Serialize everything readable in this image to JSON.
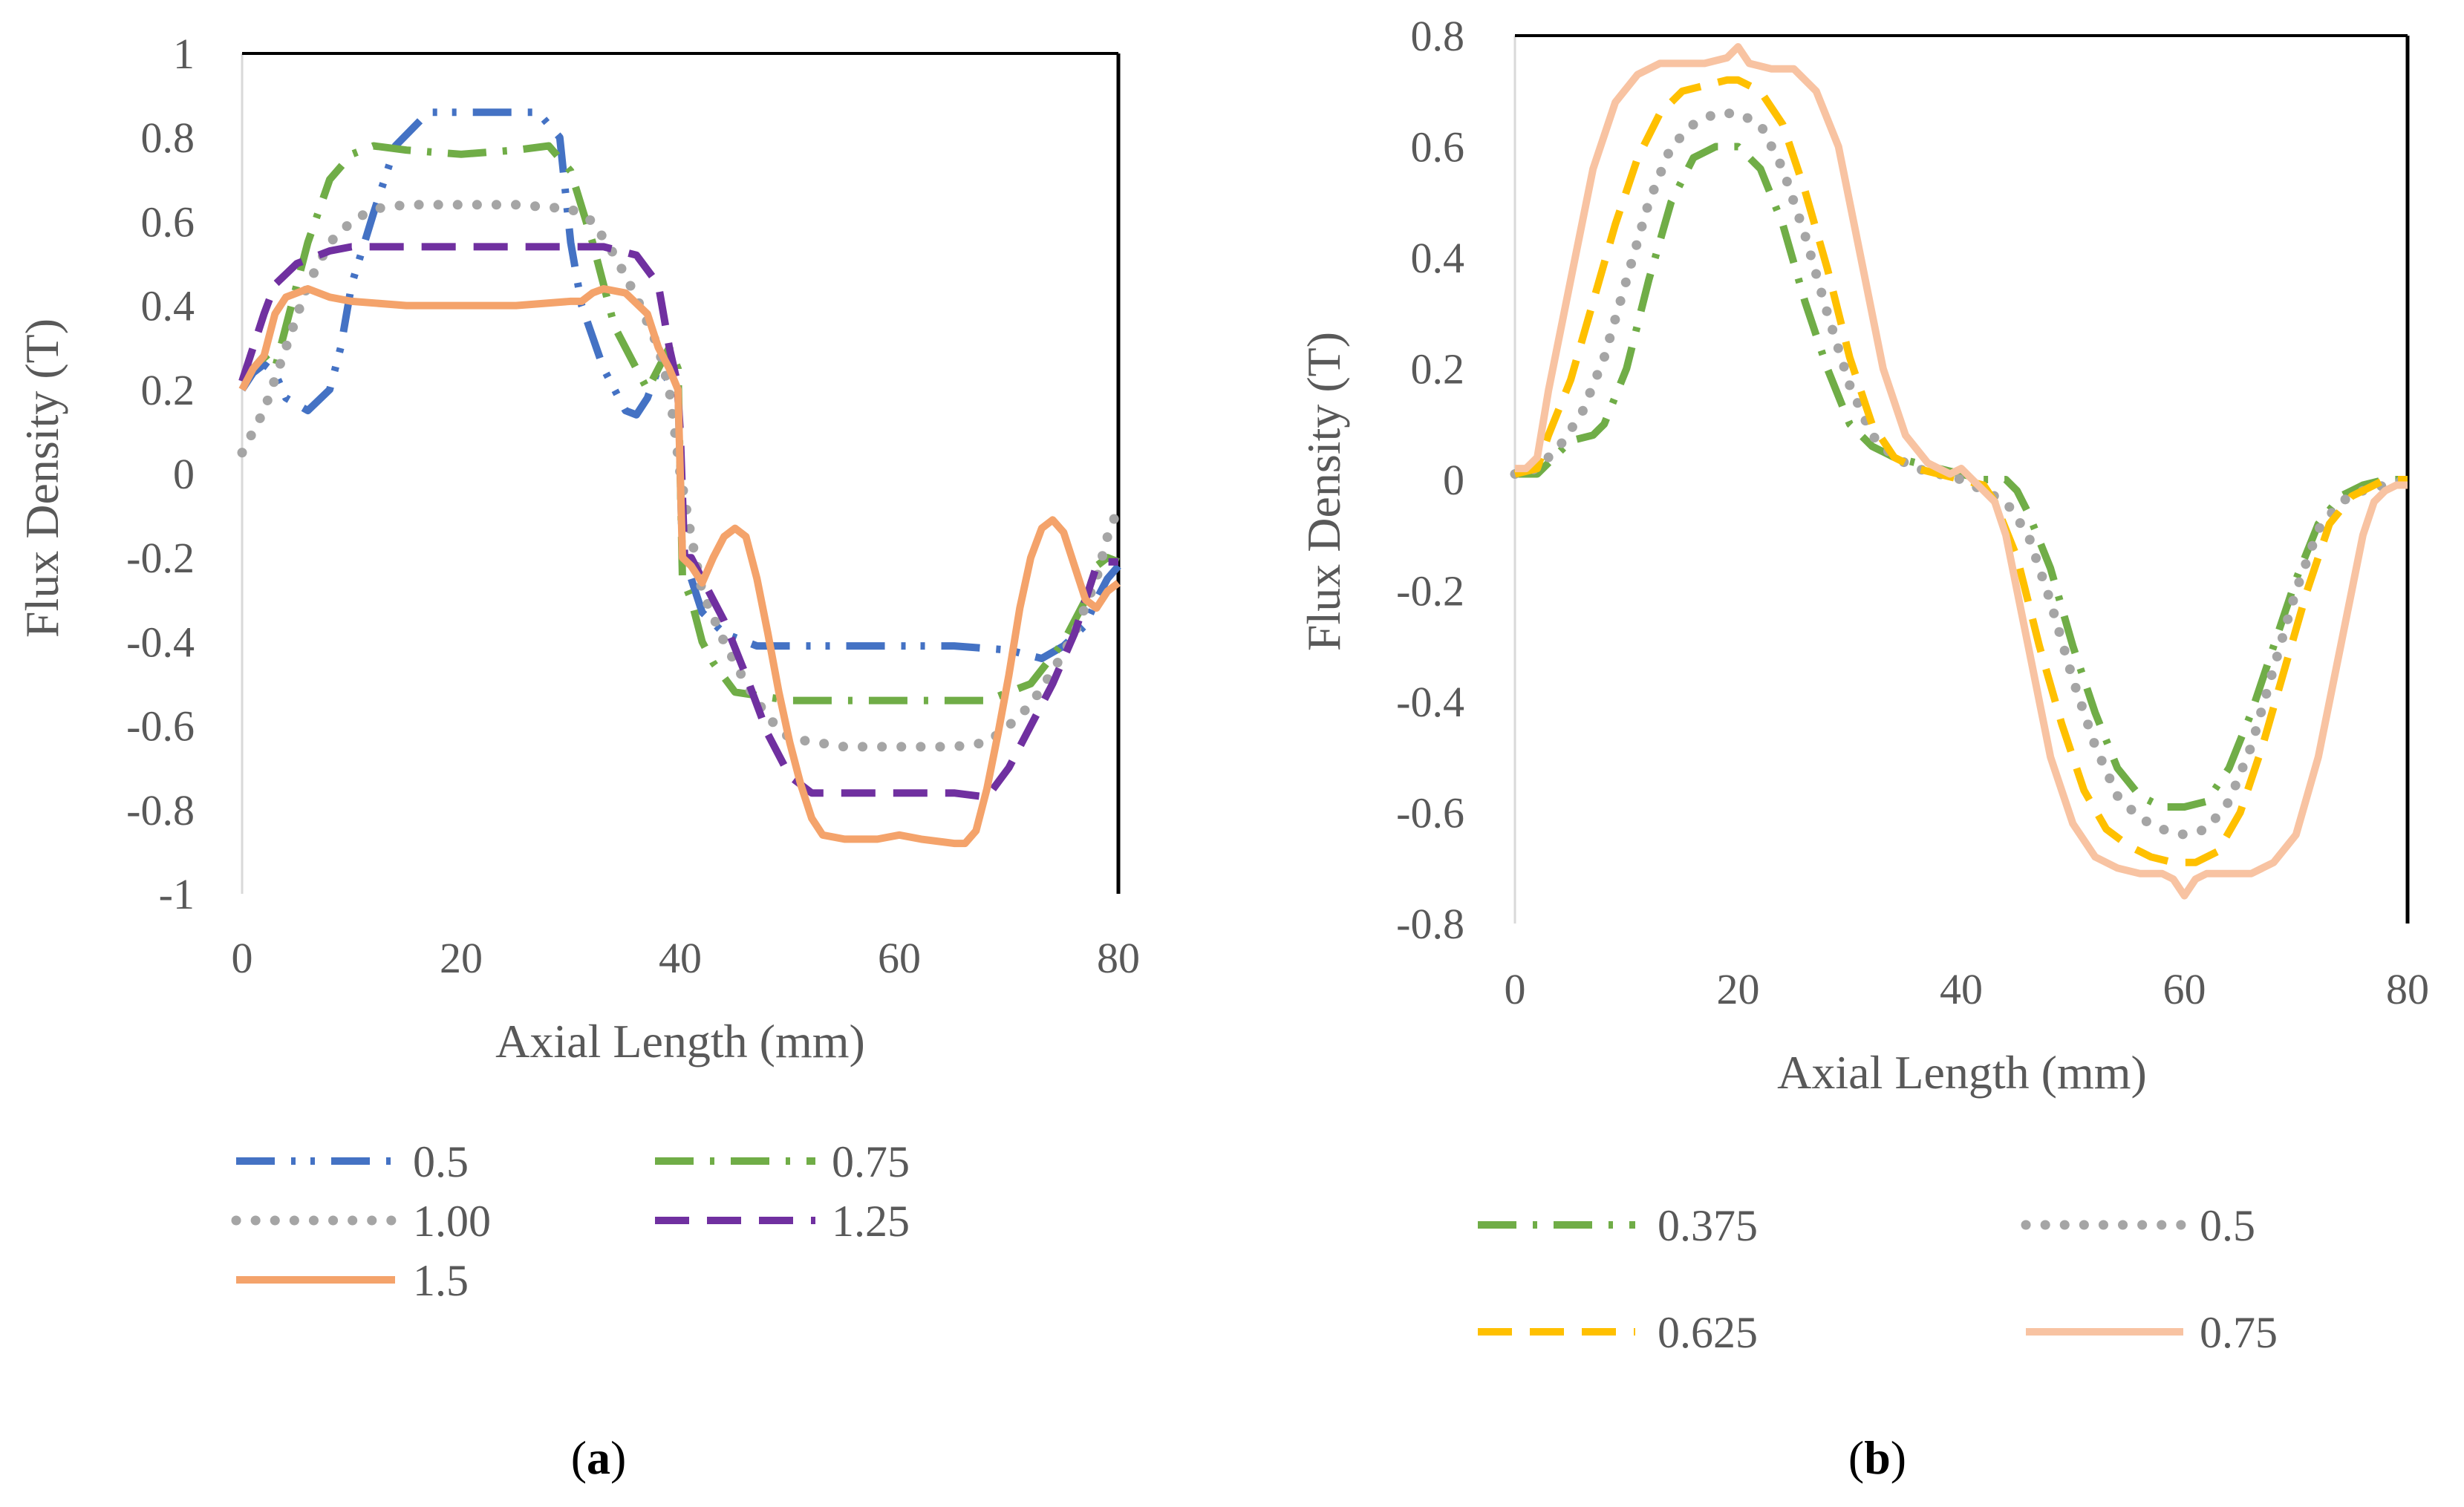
{
  "colors": {
    "blue": "#4472C4",
    "green": "#70AD47",
    "gray": "#A5A5A5",
    "purple": "#7030A0",
    "orange": "#F4A36B",
    "yellow": "#FFC000",
    "peach": "#F8C3A2",
    "text": "#595959"
  },
  "chart_data": [
    {
      "type": "line",
      "caption": {
        "open": "(",
        "letter": "a",
        "close": ")"
      },
      "xlabel": "Axial Length (mm)",
      "ylabel": "Flux Density (T)",
      "xlim": [
        0,
        80
      ],
      "ylim": [
        -1,
        1
      ],
      "xticks": [
        "0",
        "20",
        "40",
        "60",
        "80"
      ],
      "yticks": [
        "1",
        "0.8",
        "0.6",
        "0.4",
        "0.2",
        "0",
        "-0.2",
        "-0.4",
        "-0.6",
        "-0.8",
        "-1"
      ],
      "legend_position": "bottom",
      "series": [
        {
          "name": "0.5",
          "color_key": "blue",
          "dash": "dashdotdot",
          "x": [
            0,
            1,
            2,
            3,
            4,
            6,
            8,
            9,
            10,
            12,
            14,
            17,
            20,
            24,
            27,
            29,
            30,
            31,
            33,
            35,
            36,
            37,
            38,
            39,
            39.8,
            40.2,
            41,
            42,
            44,
            47,
            50,
            55,
            60,
            65,
            70,
            73,
            75,
            77,
            78,
            79,
            80
          ],
          "y": [
            0.2,
            0.24,
            0.26,
            0.24,
            0.18,
            0.15,
            0.2,
            0.3,
            0.45,
            0.62,
            0.78,
            0.86,
            0.86,
            0.86,
            0.86,
            0.8,
            0.55,
            0.4,
            0.25,
            0.15,
            0.14,
            0.18,
            0.25,
            0.22,
            0.2,
            -0.2,
            -0.25,
            -0.33,
            -0.38,
            -0.41,
            -0.41,
            -0.41,
            -0.41,
            -0.41,
            -0.42,
            -0.44,
            -0.41,
            -0.36,
            -0.3,
            -0.25,
            -0.22
          ]
        },
        {
          "name": "0.75",
          "color_key": "green",
          "dash": "dashdot",
          "x": [
            0,
            1,
            2,
            3,
            4,
            6,
            8,
            10,
            12,
            15,
            20,
            25,
            28,
            30,
            32,
            34,
            36,
            37,
            38,
            39,
            39.8,
            40.2,
            41,
            42,
            43,
            45,
            50,
            55,
            60,
            65,
            68,
            70,
            72,
            75,
            77,
            78,
            79,
            80
          ],
          "y": [
            0.22,
            0.25,
            0.28,
            0.25,
            0.35,
            0.55,
            0.7,
            0.76,
            0.78,
            0.77,
            0.76,
            0.77,
            0.78,
            0.72,
            0.55,
            0.35,
            0.25,
            0.2,
            0.25,
            0.3,
            0.25,
            -0.25,
            -0.3,
            -0.4,
            -0.45,
            -0.52,
            -0.54,
            -0.54,
            -0.54,
            -0.54,
            -0.54,
            -0.52,
            -0.5,
            -0.4,
            -0.3,
            -0.22,
            -0.2,
            -0.21
          ]
        },
        {
          "name": "1.00",
          "color_key": "gray",
          "dash": "dot",
          "x": [
            0,
            1,
            2,
            4,
            6,
            8,
            10,
            12,
            15,
            20,
            25,
            30,
            32,
            34,
            36,
            38,
            39,
            40,
            41,
            42,
            44,
            46,
            48,
            50,
            55,
            60,
            65,
            68,
            70,
            72,
            74,
            76,
            78,
            79,
            80
          ],
          "y": [
            0.05,
            0.1,
            0.15,
            0.3,
            0.45,
            0.55,
            0.6,
            0.63,
            0.64,
            0.64,
            0.64,
            0.63,
            0.6,
            0.52,
            0.42,
            0.3,
            0.2,
            0.0,
            -0.15,
            -0.28,
            -0.4,
            -0.5,
            -0.58,
            -0.63,
            -0.65,
            -0.65,
            -0.65,
            -0.64,
            -0.6,
            -0.55,
            -0.47,
            -0.38,
            -0.25,
            -0.15,
            -0.08
          ]
        },
        {
          "name": "1.25",
          "color_key": "purple",
          "dash": "dash",
          "x": [
            0,
            1,
            2,
            3,
            5,
            8,
            10,
            15,
            20,
            25,
            30,
            33,
            36,
            38,
            39,
            39.7,
            40,
            40.4,
            41,
            42,
            44,
            46,
            48,
            50,
            52,
            55,
            60,
            65,
            68,
            70,
            72,
            74,
            76,
            77,
            78,
            79,
            80
          ],
          "y": [
            0.22,
            0.3,
            0.38,
            0.45,
            0.5,
            0.53,
            0.54,
            0.54,
            0.54,
            0.54,
            0.54,
            0.54,
            0.52,
            0.45,
            0.3,
            0.22,
            0.1,
            -0.2,
            -0.2,
            -0.25,
            -0.35,
            -0.48,
            -0.62,
            -0.72,
            -0.76,
            -0.76,
            -0.76,
            -0.76,
            -0.77,
            -0.7,
            -0.6,
            -0.5,
            -0.38,
            -0.3,
            -0.22,
            -0.21,
            -0.21
          ]
        },
        {
          "name": "1.5",
          "color_key": "orange",
          "dash": "solid",
          "x": [
            0,
            1,
            2,
            3,
            4,
            6,
            8,
            10,
            15,
            20,
            25,
            30,
            31,
            32,
            33,
            35,
            37,
            38,
            39,
            39.8,
            40.2,
            41,
            42,
            43,
            44,
            45,
            46,
            47,
            48,
            49,
            50,
            51,
            52,
            53,
            55,
            58,
            60,
            62,
            65,
            66,
            67,
            68,
            69,
            70,
            71,
            72,
            73,
            74,
            75,
            76,
            77,
            78,
            79,
            80
          ],
          "y": [
            0.2,
            0.25,
            0.28,
            0.38,
            0.42,
            0.44,
            0.42,
            0.41,
            0.4,
            0.4,
            0.4,
            0.41,
            0.41,
            0.43,
            0.44,
            0.43,
            0.38,
            0.3,
            0.25,
            0.2,
            -0.2,
            -0.22,
            -0.26,
            -0.2,
            -0.15,
            -0.13,
            -0.15,
            -0.25,
            -0.38,
            -0.52,
            -0.64,
            -0.74,
            -0.82,
            -0.86,
            -0.87,
            -0.87,
            -0.86,
            -0.87,
            -0.88,
            -0.88,
            -0.85,
            -0.75,
            -0.62,
            -0.48,
            -0.32,
            -0.2,
            -0.13,
            -0.11,
            -0.14,
            -0.22,
            -0.3,
            -0.32,
            -0.28,
            -0.26
          ]
        }
      ]
    },
    {
      "type": "line",
      "caption": {
        "open": "(",
        "letter": "b",
        "close": ")"
      },
      "xlabel": "Axial Length (mm)",
      "ylabel": "Flux Density (T)",
      "xlim": [
        0,
        80
      ],
      "ylim": [
        -0.8,
        0.8
      ],
      "xticks": [
        "0",
        "20",
        "40",
        "60",
        "80"
      ],
      "yticks": [
        "0.8",
        "0.6",
        "0.4",
        "0.2",
        "0",
        "-0.2",
        "-0.4",
        "-0.6",
        "-0.8"
      ],
      "legend_position": "bottom",
      "series": [
        {
          "name": "0.375",
          "color_key": "green",
          "dash": "dashdot",
          "x": [
            0,
            2,
            3,
            5,
            7,
            8,
            10,
            12,
            14,
            16,
            18,
            20,
            22,
            24,
            26,
            28,
            30,
            32,
            34,
            36,
            38,
            40,
            42,
            44,
            45,
            46,
            48,
            50,
            52,
            54,
            56,
            58,
            60,
            62,
            64,
            66,
            68,
            70,
            72,
            74,
            76,
            78,
            80
          ],
          "y": [
            0.01,
            0.01,
            0.03,
            0.07,
            0.08,
            0.1,
            0.2,
            0.36,
            0.5,
            0.58,
            0.6,
            0.6,
            0.56,
            0.46,
            0.32,
            0.2,
            0.1,
            0.06,
            0.04,
            0.03,
            0.02,
            0.01,
            0.0,
            0.0,
            -0.02,
            -0.06,
            -0.16,
            -0.3,
            -0.42,
            -0.52,
            -0.57,
            -0.59,
            -0.59,
            -0.58,
            -0.52,
            -0.42,
            -0.3,
            -0.18,
            -0.08,
            -0.03,
            -0.01,
            0.0,
            0.0
          ]
        },
        {
          "name": "0.5",
          "color_key": "gray",
          "dash": "dot",
          "x": [
            0,
            2,
            4,
            6,
            8,
            10,
            12,
            14,
            16,
            18,
            20,
            22,
            24,
            26,
            28,
            30,
            32,
            34,
            36,
            38,
            40,
            42,
            44,
            46,
            48,
            50,
            52,
            54,
            56,
            58,
            60,
            62,
            64,
            66,
            68,
            70,
            72,
            74,
            76,
            78,
            80
          ],
          "y": [
            0.01,
            0.02,
            0.06,
            0.12,
            0.22,
            0.36,
            0.5,
            0.6,
            0.64,
            0.66,
            0.66,
            0.64,
            0.56,
            0.44,
            0.3,
            0.17,
            0.08,
            0.04,
            0.02,
            0.01,
            0.0,
            -0.02,
            -0.04,
            -0.1,
            -0.22,
            -0.36,
            -0.48,
            -0.57,
            -0.61,
            -0.63,
            -0.64,
            -0.63,
            -0.58,
            -0.48,
            -0.34,
            -0.2,
            -0.09,
            -0.04,
            -0.02,
            -0.01,
            0.0
          ]
        },
        {
          "name": "0.625",
          "color_key": "yellow",
          "dash": "dash",
          "x": [
            0,
            2,
            3,
            5,
            7,
            9,
            11,
            13,
            15,
            17,
            19,
            20,
            22,
            24,
            26,
            28,
            30,
            32,
            34,
            36,
            38,
            40,
            42,
            43,
            45,
            47,
            49,
            51,
            53,
            55,
            57,
            59,
            61,
            63,
            65,
            67,
            69,
            71,
            73,
            75,
            77,
            78,
            80
          ],
          "y": [
            0.01,
            0.02,
            0.08,
            0.18,
            0.32,
            0.46,
            0.58,
            0.66,
            0.7,
            0.71,
            0.72,
            0.72,
            0.7,
            0.64,
            0.52,
            0.38,
            0.22,
            0.1,
            0.04,
            0.02,
            0.01,
            0.0,
            -0.01,
            -0.04,
            -0.14,
            -0.3,
            -0.44,
            -0.56,
            -0.63,
            -0.66,
            -0.68,
            -0.69,
            -0.69,
            -0.67,
            -0.6,
            -0.48,
            -0.34,
            -0.2,
            -0.08,
            -0.03,
            -0.01,
            0.0,
            0.0
          ]
        },
        {
          "name": "0.75",
          "color_key": "peach",
          "dash": "solid",
          "x": [
            0,
            1,
            2,
            3,
            5,
            7,
            9,
            11,
            13,
            15,
            17,
            19,
            20,
            21,
            23,
            25,
            27,
            29,
            31,
            33,
            35,
            37,
            38,
            39,
            40,
            41,
            42,
            43,
            44,
            46,
            48,
            50,
            52,
            54,
            56,
            58,
            59,
            60,
            61,
            62,
            64,
            66,
            68,
            70,
            72,
            74,
            76,
            77,
            78,
            79,
            80
          ],
          "y": [
            0.02,
            0.02,
            0.04,
            0.16,
            0.36,
            0.56,
            0.68,
            0.73,
            0.75,
            0.75,
            0.75,
            0.76,
            0.78,
            0.75,
            0.74,
            0.74,
            0.7,
            0.6,
            0.4,
            0.2,
            0.08,
            0.03,
            0.02,
            0.01,
            0.02,
            0.0,
            -0.02,
            -0.04,
            -0.1,
            -0.3,
            -0.5,
            -0.62,
            -0.68,
            -0.7,
            -0.71,
            -0.71,
            -0.72,
            -0.75,
            -0.72,
            -0.71,
            -0.71,
            -0.71,
            -0.69,
            -0.64,
            -0.5,
            -0.3,
            -0.1,
            -0.04,
            -0.02,
            -0.01,
            -0.01
          ]
        }
      ]
    }
  ]
}
